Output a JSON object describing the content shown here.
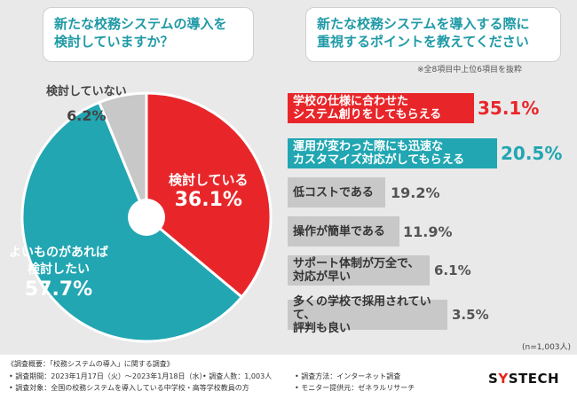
{
  "question1": "新たな校務システムの導入を\n検討していますか？",
  "question2": "新たな校務システムを導入する際に\n重視するポイントを教えてください",
  "note": "※全8項目中上位6項目を抜粋",
  "total": "(n=1,003人)",
  "chart_data": [
    {
      "type": "pie",
      "categories": [
        "検討している",
        "よいものがあれば\n検討したい",
        "検討していない"
      ],
      "values": [
        36.1,
        57.7,
        6.2
      ],
      "value_labels": [
        "36.1%",
        "57.7%",
        "6.2%"
      ],
      "colors": [
        "#e8262a",
        "#21a6b2",
        "#c8c8c8"
      ]
    },
    {
      "type": "bar",
      "categories": [
        "学校の仕様に合わせた\nシステム創りをしてもらえる",
        "運用が変わった際にも迅速な\nカスタマイズ対応がしてもらえる",
        "低コストである",
        "操作が簡単である",
        "サポート体制が万全で、\n対応が早い",
        "多くの学校で採用されていて、\n評判も良い"
      ],
      "values": [
        35.1,
        20.5,
        19.2,
        11.9,
        6.1,
        3.5
      ],
      "value_labels": [
        "35.1%",
        "20.5%",
        "19.2%",
        "11.9%",
        "6.1%",
        "3.5%"
      ],
      "colors": [
        "#e8262a",
        "#21a6b2",
        "#c8c8c8",
        "#c8c8c8",
        "#c8c8c8",
        "#c8c8c8"
      ]
    }
  ],
  "footer": {
    "title": "《調査概要：「校務システムの導入」に関する調査》",
    "period": "• 調査期間：2023年1月17日（火）〜2023年1月18日（水）",
    "people": "• 調査人数：1,003人",
    "method": "• 調査方法：インターネット調査",
    "target": "• 調査対象：全国の校務システムを導入している中学校・高等学校教員の方",
    "monitor": "• モニター提供元：ゼネラルリサーチ"
  },
  "logo": {
    "pre": "S",
    "y": "Y",
    "post": "STECH"
  }
}
